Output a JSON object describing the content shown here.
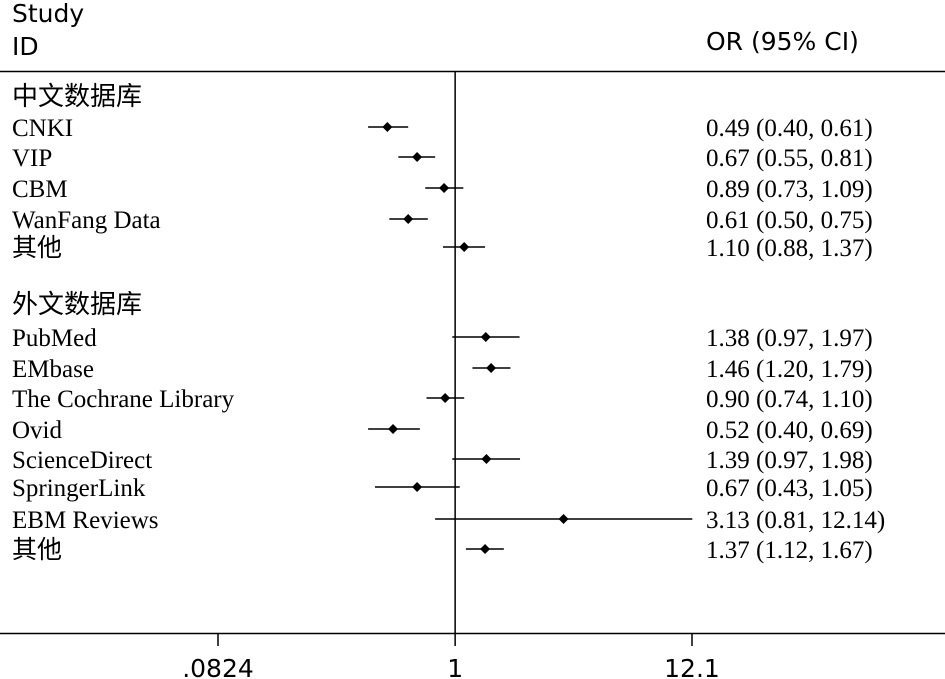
{
  "header": {
    "study_line1": "Study",
    "study_line2": "ID",
    "effect_label": "OR (95% CI)"
  },
  "chart_data": {
    "type": "forest",
    "scale": "log",
    "reference_line": 1,
    "xticks": [
      {
        "value": 0.0824,
        "label": ".0824"
      },
      {
        "value": 1,
        "label": "1"
      },
      {
        "value": 12.1,
        "label": "12.1"
      }
    ],
    "groups": [
      {
        "name": "中文数据库",
        "studies": [
          {
            "label": "CNKI",
            "or": 0.49,
            "lo": 0.4,
            "hi": 0.61,
            "text": "0.49 (0.40, 0.61)"
          },
          {
            "label": "VIP",
            "or": 0.67,
            "lo": 0.55,
            "hi": 0.81,
            "text": "0.67 (0.55, 0.81)"
          },
          {
            "label": "CBM",
            "or": 0.89,
            "lo": 0.73,
            "hi": 1.09,
            "text": "0.89 (0.73, 1.09)"
          },
          {
            "label": "WanFang Data",
            "or": 0.61,
            "lo": 0.5,
            "hi": 0.75,
            "text": "0.61 (0.50, 0.75)"
          },
          {
            "label": "其他",
            "or": 1.1,
            "lo": 0.88,
            "hi": 1.37,
            "text": "1.10 (0.88, 1.37)"
          }
        ]
      },
      {
        "name": "外文数据库",
        "studies": [
          {
            "label": "PubMed",
            "or": 1.38,
            "lo": 0.97,
            "hi": 1.97,
            "text": "1.38 (0.97, 1.97)"
          },
          {
            "label": "EMbase",
            "or": 1.46,
            "lo": 1.2,
            "hi": 1.79,
            "text": "1.46 (1.20, 1.79)"
          },
          {
            "label": "The Cochrane Library",
            "or": 0.9,
            "lo": 0.74,
            "hi": 1.1,
            "text": "0.90 (0.74, 1.10)"
          },
          {
            "label": "Ovid",
            "or": 0.52,
            "lo": 0.4,
            "hi": 0.69,
            "text": "0.52 (0.40, 0.69)"
          },
          {
            "label": "ScienceDirect",
            "or": 1.39,
            "lo": 0.97,
            "hi": 1.98,
            "text": "1.39 (0.97, 1.98)"
          },
          {
            "label": "SpringerLink",
            "or": 0.67,
            "lo": 0.43,
            "hi": 1.05,
            "text": "0.67 (0.43, 1.05)"
          },
          {
            "label": "EBM Reviews",
            "or": 3.13,
            "lo": 0.81,
            "hi": 12.14,
            "text": "3.13 (0.81, 12.14)"
          },
          {
            "label": "其他",
            "or": 1.37,
            "lo": 1.12,
            "hi": 1.67,
            "text": "1.37 (1.12, 1.67)"
          }
        ]
      }
    ]
  }
}
